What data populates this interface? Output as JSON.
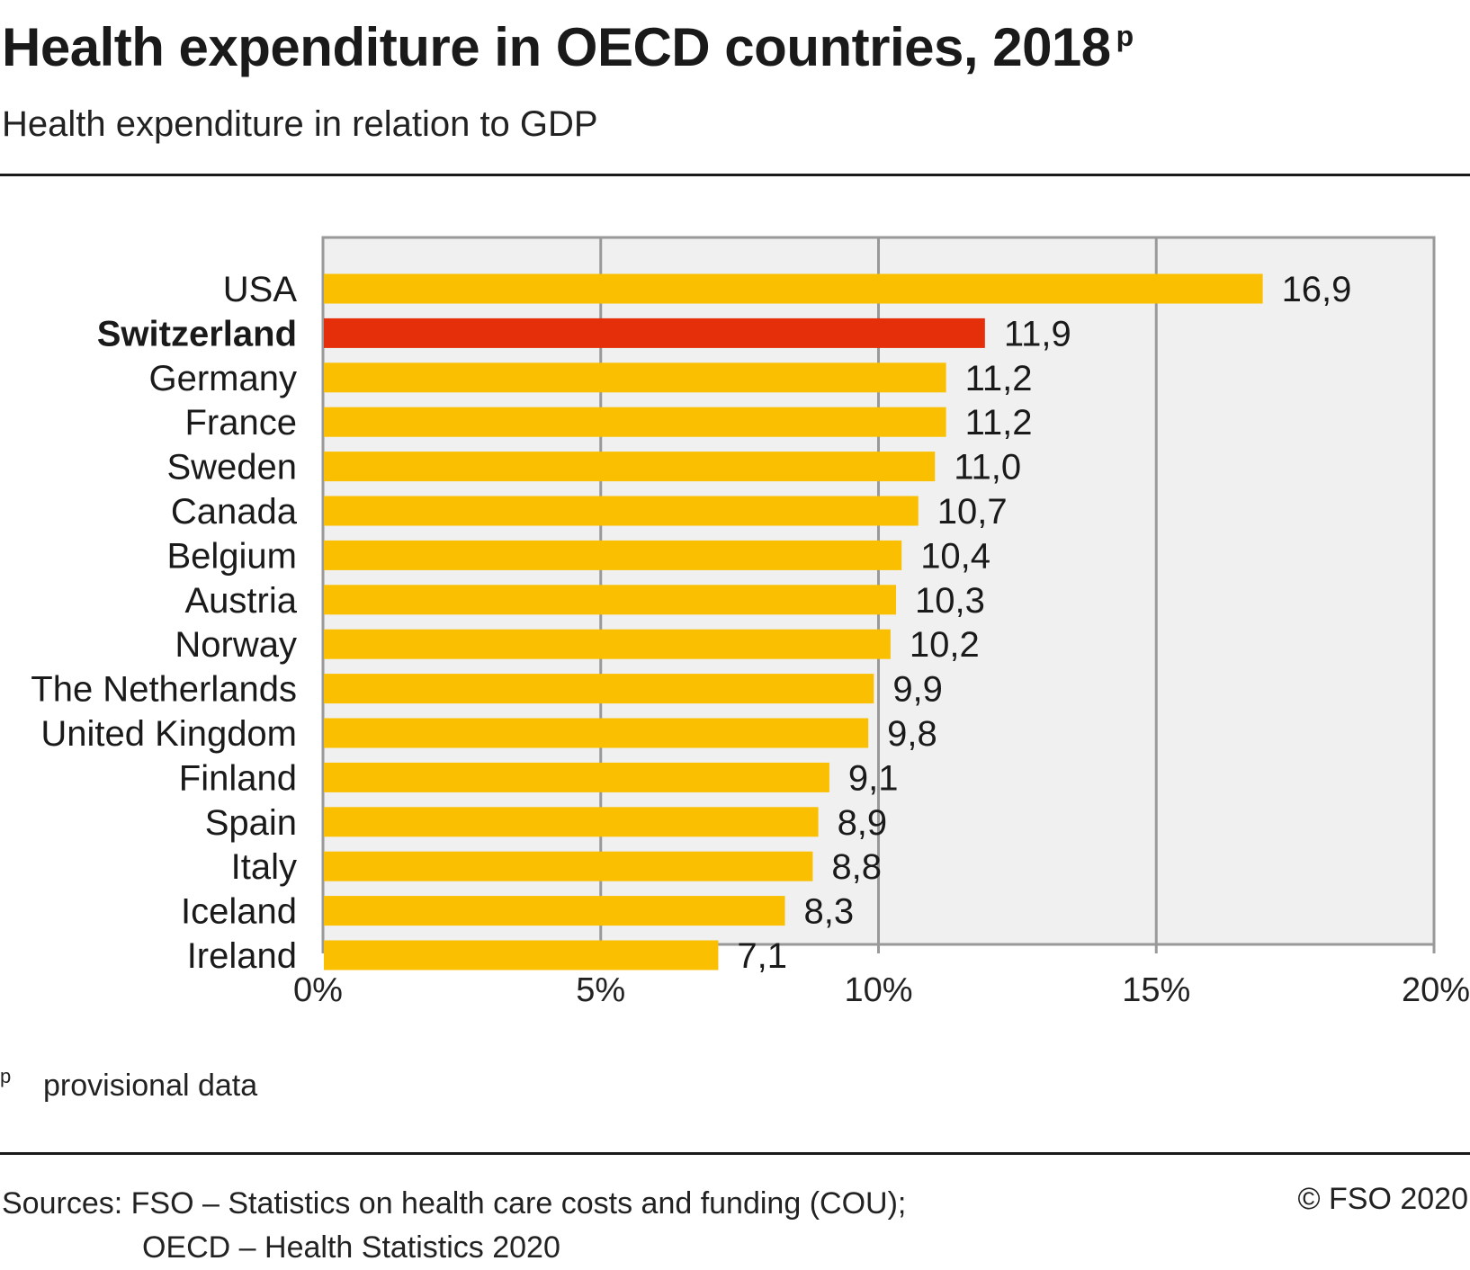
{
  "header": {
    "title": "Health expenditure in OECD countries, 2018",
    "title_marker": "p",
    "subtitle": "Health expenditure in relation to GDP"
  },
  "chart_data": {
    "type": "bar",
    "orientation": "horizontal",
    "categories": [
      "USA",
      "Switzerland",
      "Germany",
      "France",
      "Sweden",
      "Canada",
      "Belgium",
      "Austria",
      "Norway",
      "The Netherlands",
      "United Kingdom",
      "Finland",
      "Spain",
      "Italy",
      "Iceland",
      "Ireland"
    ],
    "values": [
      16.9,
      11.9,
      11.2,
      11.2,
      11.0,
      10.7,
      10.4,
      10.3,
      10.2,
      9.9,
      9.8,
      9.1,
      8.9,
      8.8,
      8.3,
      7.1
    ],
    "value_labels": [
      "16,9",
      "11,9",
      "11,2",
      "11,2",
      "11,0",
      "10,7",
      "10,4",
      "10,3",
      "10,2",
      "9,9",
      "9,8",
      "9,1",
      "8,9",
      "8,8",
      "8,3",
      "7,1"
    ],
    "highlight": "Switzerland",
    "xlim": [
      0,
      20
    ],
    "xticks": [
      0,
      5,
      10,
      15,
      20
    ],
    "xtick_labels": [
      "0%",
      "5%",
      "10%",
      "15%",
      "20%"
    ],
    "grid": true,
    "colors": {
      "bar": "#f9bf00",
      "highlight": "#e52e0a",
      "plot_bg": "#f0f0f0",
      "grid": "#999999"
    }
  },
  "footnote": {
    "mark": "p",
    "text": "provisional data"
  },
  "footer": {
    "sources_line1": "Sources: FSO – Statistics on health care costs and funding (COU);",
    "sources_line2": "OECD – Health Statistics 2020",
    "copyright": "© FSO 2020"
  }
}
